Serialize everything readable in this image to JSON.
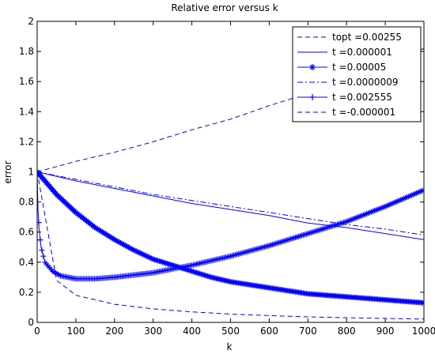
{
  "chart_data": {
    "type": "line",
    "title": "Relative error versus k",
    "xlabel": "k",
    "ylabel": "error",
    "xlim": [
      0,
      1000
    ],
    "ylim": [
      0,
      2
    ],
    "xticks": [
      0,
      100,
      200,
      300,
      400,
      500,
      600,
      700,
      800,
      900,
      1000
    ],
    "yticks": [
      0,
      0.2,
      0.4,
      0.6,
      0.8,
      1,
      1.2,
      1.4,
      1.6,
      1.8,
      2
    ],
    "xtick_labels": [
      "0",
      "100",
      "200",
      "300",
      "400",
      "500",
      "600",
      "700",
      "800",
      "900",
      "1000"
    ],
    "ytick_labels": [
      "0",
      "0.2",
      "0.4",
      "0.6",
      "0.8",
      "1",
      "1.2",
      "1.4",
      "1.6",
      "1.8",
      "2"
    ],
    "grid": false,
    "legend_position": "top-right",
    "series": [
      {
        "name": "topt =0.00255",
        "style": "dashed",
        "marker": "none",
        "color": "#0000ff",
        "points": [
          [
            0,
            1.0
          ],
          [
            50,
            0.28
          ],
          [
            100,
            0.18
          ],
          [
            200,
            0.12
          ],
          [
            300,
            0.09
          ],
          [
            400,
            0.07
          ],
          [
            500,
            0.055
          ],
          [
            600,
            0.045
          ],
          [
            700,
            0.037
          ],
          [
            800,
            0.031
          ],
          [
            900,
            0.026
          ],
          [
            1000,
            0.022
          ]
        ]
      },
      {
        "name": "t =0.000001",
        "style": "solid",
        "marker": "none",
        "color": "#0000ff",
        "points": [
          [
            0,
            1.0
          ],
          [
            100,
            0.94
          ],
          [
            200,
            0.89
          ],
          [
            300,
            0.84
          ],
          [
            400,
            0.79
          ],
          [
            500,
            0.75
          ],
          [
            600,
            0.71
          ],
          [
            700,
            0.66
          ],
          [
            800,
            0.63
          ],
          [
            900,
            0.59
          ],
          [
            1000,
            0.55
          ]
        ]
      },
      {
        "name": "t =0.00005",
        "style": "solid",
        "marker": "star",
        "color": "#0000ff",
        "points": [
          [
            0,
            1.0
          ],
          [
            50,
            0.85
          ],
          [
            100,
            0.73
          ],
          [
            150,
            0.63
          ],
          [
            200,
            0.55
          ],
          [
            250,
            0.48
          ],
          [
            300,
            0.42
          ],
          [
            350,
            0.38
          ],
          [
            400,
            0.34
          ],
          [
            450,
            0.3
          ],
          [
            500,
            0.27
          ],
          [
            550,
            0.25
          ],
          [
            600,
            0.23
          ],
          [
            650,
            0.21
          ],
          [
            700,
            0.19
          ],
          [
            750,
            0.18
          ],
          [
            800,
            0.17
          ],
          [
            850,
            0.16
          ],
          [
            900,
            0.15
          ],
          [
            950,
            0.14
          ],
          [
            1000,
            0.13
          ]
        ]
      },
      {
        "name": "t =0.0000009",
        "style": "dashdot",
        "marker": "none",
        "color": "#0000ff",
        "points": [
          [
            0,
            1.0
          ],
          [
            100,
            0.95
          ],
          [
            200,
            0.9
          ],
          [
            300,
            0.85
          ],
          [
            400,
            0.81
          ],
          [
            500,
            0.77
          ],
          [
            600,
            0.73
          ],
          [
            700,
            0.69
          ],
          [
            800,
            0.65
          ],
          [
            900,
            0.62
          ],
          [
            1000,
            0.58
          ]
        ]
      },
      {
        "name": "t =0.002555",
        "style": "solid",
        "marker": "plus",
        "color": "#0000ff",
        "points": [
          [
            0,
            1.0
          ],
          [
            2,
            0.75
          ],
          [
            5,
            0.62
          ],
          [
            10,
            0.5
          ],
          [
            20,
            0.4
          ],
          [
            40,
            0.34
          ],
          [
            60,
            0.31
          ],
          [
            80,
            0.3
          ],
          [
            100,
            0.29
          ],
          [
            150,
            0.29
          ],
          [
            200,
            0.3
          ],
          [
            300,
            0.33
          ],
          [
            400,
            0.38
          ],
          [
            500,
            0.44
          ],
          [
            600,
            0.51
          ],
          [
            700,
            0.59
          ],
          [
            800,
            0.67
          ],
          [
            900,
            0.77
          ],
          [
            1000,
            0.88
          ]
        ]
      },
      {
        "name": "t =-0.000001",
        "style": "dashed",
        "marker": "none",
        "color": "#0000ff",
        "points": [
          [
            0,
            1.0
          ],
          [
            100,
            1.07
          ],
          [
            200,
            1.13
          ],
          [
            300,
            1.2
          ],
          [
            400,
            1.28
          ],
          [
            500,
            1.35
          ],
          [
            600,
            1.44
          ],
          [
            700,
            1.52
          ],
          [
            800,
            1.61
          ],
          [
            900,
            1.71
          ],
          [
            1000,
            1.82
          ]
        ]
      }
    ]
  }
}
